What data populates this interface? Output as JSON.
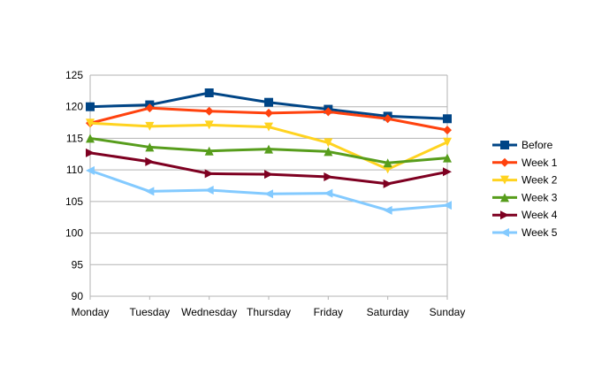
{
  "chart_data": {
    "type": "line",
    "title": "",
    "xlabel": "",
    "ylabel": "",
    "categories": [
      "Monday",
      "Tuesday",
      "Wednesday",
      "Thursday",
      "Friday",
      "Saturday",
      "Sunday"
    ],
    "ylim": [
      90,
      125
    ],
    "yticks": [
      "90",
      "95",
      "100",
      "105",
      "110",
      "115",
      "120",
      "125"
    ],
    "grid": true,
    "legend_position": "right",
    "series": [
      {
        "name": "Before",
        "color": "#004586",
        "marker": "square",
        "values": [
          120.0,
          120.3,
          122.2,
          120.7,
          119.6,
          118.5,
          118.1
        ]
      },
      {
        "name": "Week 1",
        "color": "#ff420e",
        "marker": "diamond",
        "values": [
          117.4,
          119.8,
          119.3,
          119.0,
          119.2,
          118.1,
          116.3
        ]
      },
      {
        "name": "Week 2",
        "color": "#ffd320",
        "marker": "triangle-down",
        "values": [
          117.4,
          116.9,
          117.1,
          116.8,
          114.3,
          110.1,
          114.4
        ]
      },
      {
        "name": "Week 3",
        "color": "#579d1c",
        "marker": "triangle-up",
        "values": [
          115.0,
          113.6,
          113.0,
          113.3,
          112.9,
          111.1,
          111.9
        ]
      },
      {
        "name": "Week 4",
        "color": "#7e0021",
        "marker": "triangle-right",
        "values": [
          112.7,
          111.3,
          109.4,
          109.3,
          108.9,
          107.8,
          109.7
        ]
      },
      {
        "name": "Week 5",
        "color": "#83caff",
        "marker": "triangle-left",
        "values": [
          109.9,
          106.6,
          106.8,
          106.2,
          106.3,
          103.6,
          104.4
        ]
      }
    ]
  }
}
